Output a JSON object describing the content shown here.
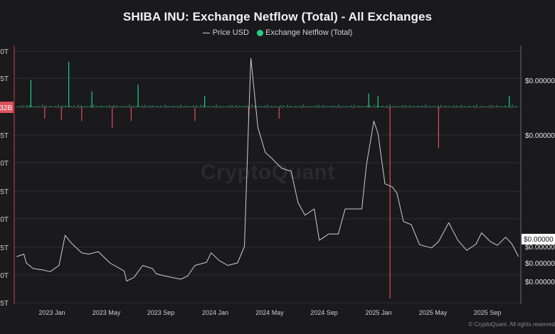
{
  "chart_data": {
    "type": "line+bar",
    "title": "SHIBA INU: Exchange Netflow (Total) - All Exchanges",
    "legend": {
      "position": "top-center",
      "items": [
        {
          "name": "Price USD",
          "color": "#cfcfcf",
          "kind": "line"
        },
        {
          "name": "Exchange Netflow (Total)",
          "color": "#1fd084",
          "kind": "dot"
        }
      ]
    },
    "x_ticks": [
      "2023 Jan",
      "2023 May",
      "2023 Sep",
      "2024 Jan",
      "2024 May",
      "2024 Sep",
      "2025 Jan",
      "2025 May",
      "2025 Sep"
    ],
    "left_axis": {
      "labels": [
        "0T",
        "5T",
        "",
        "5T",
        "0T",
        "5T",
        "0T",
        "5T",
        "0T",
        "5T"
      ],
      "highlight_label": "32B",
      "highlight_color": "#e0505b"
    },
    "right_axis": {
      "labels": [
        "$0.00000",
        "$0.00000",
        "$0.00000",
        "$0.00000",
        "$0.00000"
      ],
      "current_value_label": "$0.00000"
    },
    "x_range": [
      "2022-10-15",
      "2025-10-15"
    ],
    "price_series": {
      "name": "Price USD",
      "color": "#cfcfcf",
      "points": [
        [
          "2022-10-20",
          1.04e-05
        ],
        [
          "2022-11-05",
          1.08e-05
        ],
        [
          "2022-11-10",
          9.4e-06
        ],
        [
          "2022-11-25",
          8.5e-06
        ],
        [
          "2022-12-15",
          8.3e-06
        ],
        [
          "2023-01-01",
          8e-06
        ],
        [
          "2023-01-20",
          9e-06
        ],
        [
          "2023-02-02",
          1.38e-05
        ],
        [
          "2023-02-15",
          1.26e-05
        ],
        [
          "2023-03-10",
          1.1e-05
        ],
        [
          "2023-03-25",
          1.08e-05
        ],
        [
          "2023-04-15",
          1.12e-05
        ],
        [
          "2023-05-10",
          9.4e-06
        ],
        [
          "2023-06-10",
          8.1e-06
        ],
        [
          "2023-06-15",
          6.5e-06
        ],
        [
          "2023-07-01",
          7.1e-06
        ],
        [
          "2023-07-20",
          9e-06
        ],
        [
          "2023-08-10",
          8.5e-06
        ],
        [
          "2023-08-18",
          7.7e-06
        ],
        [
          "2023-09-01",
          7.4e-06
        ],
        [
          "2023-09-20",
          7.1e-06
        ],
        [
          "2023-10-10",
          6.8e-06
        ],
        [
          "2023-10-25",
          7.3e-06
        ],
        [
          "2023-11-10",
          9e-06
        ],
        [
          "2023-12-05",
          9.5e-06
        ],
        [
          "2023-12-15",
          1.1e-05
        ],
        [
          "2024-01-01",
          9.8e-06
        ],
        [
          "2024-01-20",
          9e-06
        ],
        [
          "2024-02-10",
          9.4e-06
        ],
        [
          "2024-02-25",
          1.2e-05
        ],
        [
          "2024-03-05",
          3.2e-05
        ],
        [
          "2024-03-10",
          4.2e-05
        ],
        [
          "2024-03-25",
          3.1e-05
        ],
        [
          "2024-04-10",
          2.7e-05
        ],
        [
          "2024-04-25",
          2.6e-05
        ],
        [
          "2024-05-15",
          2.45e-05
        ],
        [
          "2024-06-05",
          2.4e-05
        ],
        [
          "2024-06-20",
          1.9e-05
        ],
        [
          "2024-07-05",
          1.7e-05
        ],
        [
          "2024-07-25",
          1.8e-05
        ],
        [
          "2024-08-05",
          1.3e-05
        ],
        [
          "2024-08-25",
          1.4e-05
        ],
        [
          "2024-09-15",
          1.4e-05
        ],
        [
          "2024-09-30",
          1.8e-05
        ],
        [
          "2024-10-20",
          1.8e-05
        ],
        [
          "2024-11-05",
          1.8e-05
        ],
        [
          "2024-11-15",
          2.5e-05
        ],
        [
          "2024-12-01",
          3.2e-05
        ],
        [
          "2024-12-10",
          3e-05
        ],
        [
          "2024-12-25",
          2.2e-05
        ],
        [
          "2025-01-10",
          2.15e-05
        ],
        [
          "2025-01-20",
          2.05e-05
        ],
        [
          "2025-02-03",
          1.6e-05
        ],
        [
          "2025-02-20",
          1.55e-05
        ],
        [
          "2025-03-10",
          1.23e-05
        ],
        [
          "2025-04-05",
          1.18e-05
        ],
        [
          "2025-04-20",
          1.28e-05
        ],
        [
          "2025-05-12",
          1.58e-05
        ],
        [
          "2025-06-01",
          1.3e-05
        ],
        [
          "2025-06-20",
          1.14e-05
        ],
        [
          "2025-07-10",
          1.24e-05
        ],
        [
          "2025-07-22",
          1.42e-05
        ],
        [
          "2025-08-10",
          1.28e-05
        ],
        [
          "2025-08-25",
          1.22e-05
        ],
        [
          "2025-09-12",
          1.35e-05
        ],
        [
          "2025-09-25",
          1.25e-05
        ],
        [
          "2025-10-10",
          1.04e-05
        ]
      ]
    },
    "netflow_spikes": [
      {
        "date": "2022-11-20",
        "value": 0.6
      },
      {
        "date": "2022-12-20",
        "value": -0.25
      },
      {
        "date": "2023-01-25",
        "value": -0.28
      },
      {
        "date": "2023-02-10",
        "value": 1.0
      },
      {
        "date": "2023-03-10",
        "value": -0.3
      },
      {
        "date": "2023-04-01",
        "value": 0.35
      },
      {
        "date": "2023-05-15",
        "value": -0.45
      },
      {
        "date": "2023-06-25",
        "value": -0.3
      },
      {
        "date": "2023-07-10",
        "value": 0.5
      },
      {
        "date": "2023-11-10",
        "value": -0.3
      },
      {
        "date": "2023-12-01",
        "value": 0.25
      },
      {
        "date": "2024-03-05",
        "value": -0.2
      },
      {
        "date": "2024-05-10",
        "value": -0.25
      },
      {
        "date": "2024-11-20",
        "value": 0.3
      },
      {
        "date": "2024-12-10",
        "value": 0.25
      },
      {
        "date": "2025-01-05",
        "value": -4.2
      },
      {
        "date": "2025-04-20",
        "value": -0.9
      },
      {
        "date": "2025-09-20",
        "value": 0.25
      }
    ]
  },
  "watermark": "CryptoQuant",
  "footer": "© CryptoQuant. All rights reserved"
}
